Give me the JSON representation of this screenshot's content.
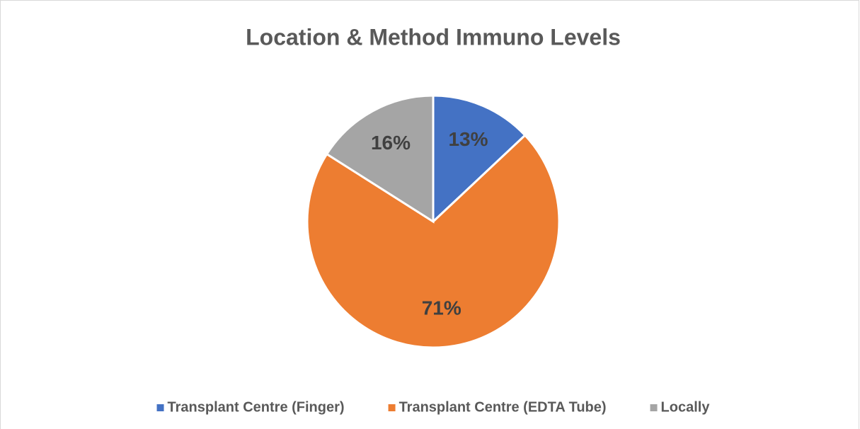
{
  "chart_data": {
    "type": "pie",
    "title": "Location & Method Immuno Levels",
    "categories": [
      "Transplant Centre (Finger)",
      "Transplant Centre (EDTA Tube)",
      "Locally"
    ],
    "values": [
      13,
      71,
      16
    ],
    "value_labels": [
      "13%",
      "71%",
      "16%"
    ],
    "colors": [
      "#4472c4",
      "#ed7d31",
      "#a5a5a5"
    ],
    "legend": "bottom"
  }
}
